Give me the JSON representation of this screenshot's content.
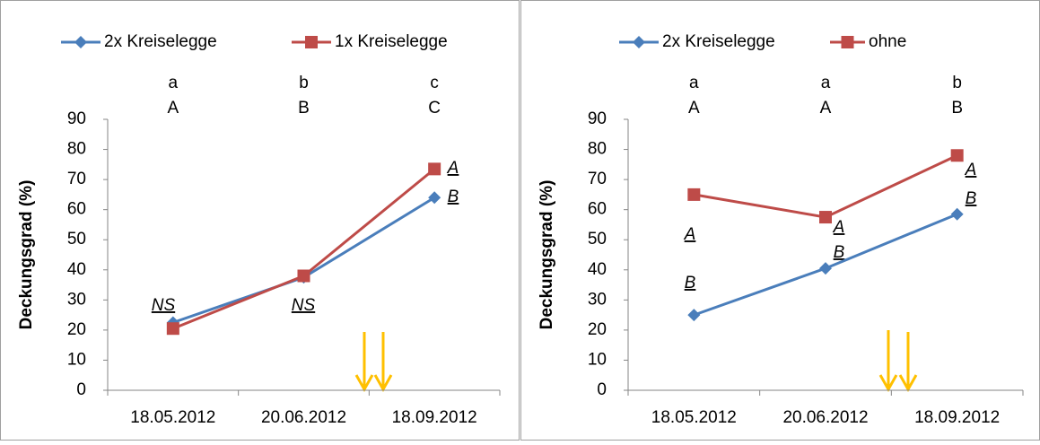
{
  "chart_data": [
    {
      "type": "line",
      "ylabel": "Deckungsgrad (%)",
      "categories": [
        "18.05.2012",
        "20.06.2012",
        "18.09.2012"
      ],
      "series": [
        {
          "name": "2x Kreiselegge",
          "color": "#4a7ebb",
          "marker": "diamond",
          "values": [
            22.5,
            37.5,
            64
          ]
        },
        {
          "name": "1x Kreiselegge",
          "color": "#be4b48",
          "marker": "square",
          "values": [
            20.5,
            38,
            73.5
          ]
        }
      ],
      "ylim": [
        0,
        90
      ],
      "yticks": [
        0,
        10,
        20,
        30,
        40,
        50,
        60,
        70,
        80,
        90
      ],
      "group_letters": [
        [
          "a",
          "A"
        ],
        [
          "b",
          "B"
        ],
        [
          "c",
          "C"
        ]
      ],
      "point_labels": [
        [
          "NS"
        ],
        [
          "NS"
        ],
        [
          "A",
          "B"
        ]
      ]
    },
    {
      "type": "line",
      "ylabel": "Deckungsgrad (%)",
      "categories": [
        "18.05.2012",
        "20.06.2012",
        "18.09.2012"
      ],
      "series": [
        {
          "name": "2x Kreiselegge",
          "color": "#4a7ebb",
          "marker": "diamond",
          "values": [
            25,
            40.5,
            58.5
          ]
        },
        {
          "name": "ohne",
          "color": "#be4b48",
          "marker": "square",
          "values": [
            65,
            57.5,
            78
          ]
        }
      ],
      "ylim": [
        0,
        90
      ],
      "yticks": [
        0,
        10,
        20,
        30,
        40,
        50,
        60,
        70,
        80,
        90
      ],
      "group_letters": [
        [
          "a",
          "A"
        ],
        [
          "a",
          "A"
        ],
        [
          "b",
          "B"
        ]
      ],
      "point_labels": [
        [
          "A",
          "B"
        ],
        [
          "A",
          "B"
        ],
        [
          "A",
          "B"
        ]
      ]
    }
  ]
}
